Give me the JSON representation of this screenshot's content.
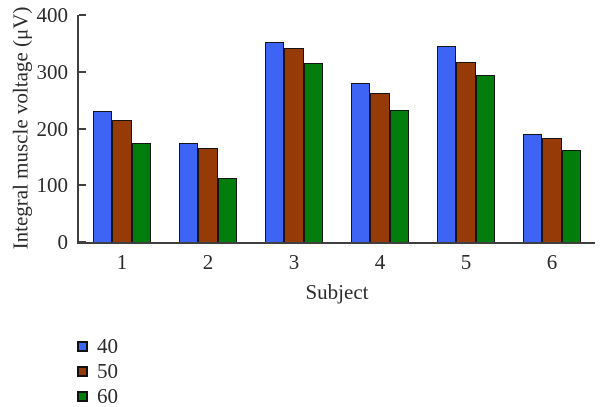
{
  "chart_data": {
    "type": "bar",
    "title": "",
    "xlabel": "Subject",
    "ylabel": "Integral muscle voltage (μV)",
    "categories": [
      "1",
      "2",
      "3",
      "4",
      "5",
      "6"
    ],
    "series": [
      {
        "name": "40",
        "color": "#3e64f5",
        "values": [
          230,
          175,
          352,
          280,
          345,
          190
        ]
      },
      {
        "name": "50",
        "color": "#963a08",
        "values": [
          215,
          165,
          342,
          263,
          317,
          184
        ]
      },
      {
        "name": "60",
        "color": "#007d0a",
        "values": [
          175,
          113,
          316,
          232,
          294,
          163
        ]
      }
    ],
    "ylim": [
      0,
      400
    ],
    "yticks": [
      0,
      100,
      200,
      300,
      400
    ],
    "grid": false,
    "legend_position": "bottom-left",
    "bar_outline_color": "#141414",
    "axis_color": "#3f3f3f"
  }
}
